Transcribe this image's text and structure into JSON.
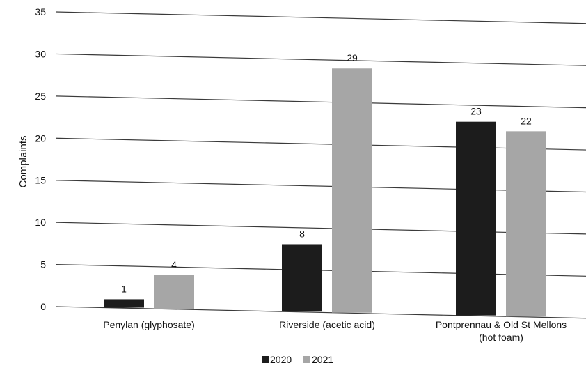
{
  "chart_data": {
    "type": "bar",
    "title": "",
    "xlabel": "",
    "ylabel": "Complaints",
    "ylim": [
      0,
      35
    ],
    "yticks": [
      0,
      5,
      10,
      15,
      20,
      25,
      30,
      35
    ],
    "grid": true,
    "legend_position": "bottom",
    "categories": [
      [
        "Penylan (glyphosate)"
      ],
      [
        "Riverside (acetic acid)"
      ],
      [
        "Pontprennau & Old St Mellons",
        "(hot foam)"
      ]
    ],
    "series": [
      {
        "name": "2020",
        "color": "#1c1c1c",
        "values": [
          1,
          8,
          23
        ]
      },
      {
        "name": "2021",
        "color": "#a6a6a6",
        "values": [
          4,
          29,
          22
        ]
      }
    ]
  }
}
